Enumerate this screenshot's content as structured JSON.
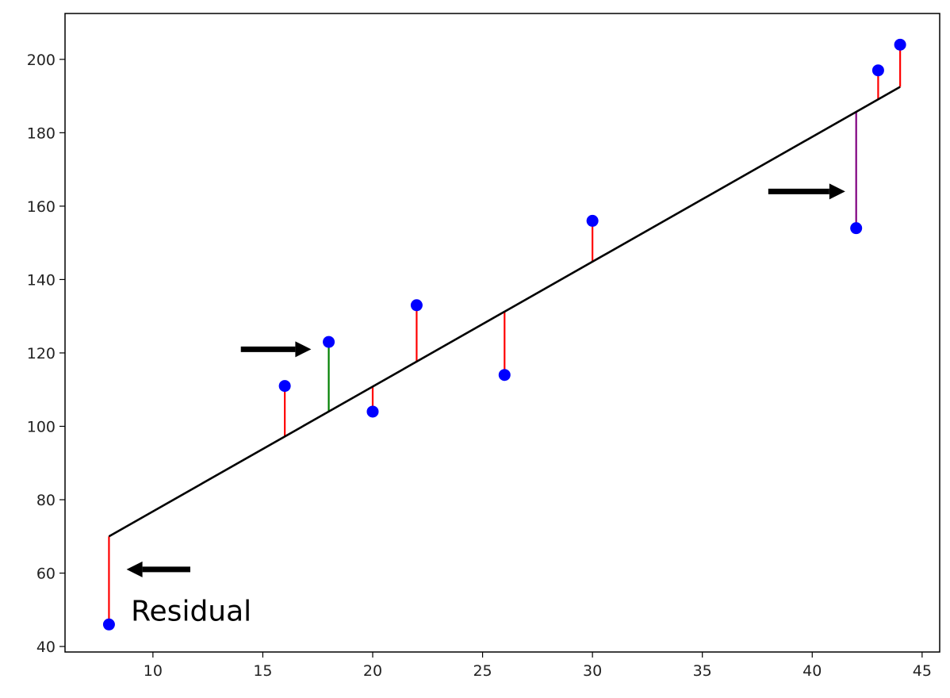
{
  "chart_data": {
    "type": "scatter",
    "title": "",
    "xlabel": "",
    "ylabel": "",
    "xlim": [
      6.0,
      45.8
    ],
    "ylim": [
      38.5,
      212.5
    ],
    "x_ticks": [
      10,
      15,
      20,
      25,
      30,
      35,
      40,
      45
    ],
    "y_ticks": [
      40,
      60,
      80,
      100,
      120,
      140,
      160,
      180,
      200
    ],
    "grid": false,
    "legend": "none",
    "regression_line": {
      "x": [
        8,
        44
      ],
      "y": [
        70,
        192.5
      ],
      "color": "#000000"
    },
    "points": [
      {
        "x": 8,
        "y": 46,
        "fitted": 70,
        "residual_color": "#ff0000"
      },
      {
        "x": 16,
        "y": 111,
        "fitted": 97.2,
        "residual_color": "#ff0000"
      },
      {
        "x": 18,
        "y": 123,
        "fitted": 104,
        "residual_color": "#008000"
      },
      {
        "x": 20,
        "y": 104,
        "fitted": 110.8,
        "residual_color": "#ff0000"
      },
      {
        "x": 22,
        "y": 133,
        "fitted": 117.6,
        "residual_color": "#ff0000"
      },
      {
        "x": 26,
        "y": 114,
        "fitted": 131.2,
        "residual_color": "#ff0000"
      },
      {
        "x": 30,
        "y": 156,
        "fitted": 144.9,
        "residual_color": "#ff0000"
      },
      {
        "x": 42,
        "y": 154,
        "fitted": 185.7,
        "residual_color": "#800080"
      },
      {
        "x": 43,
        "y": 197,
        "fitted": 189.1,
        "residual_color": "#ff0000"
      },
      {
        "x": 44,
        "y": 204,
        "fitted": 192.5,
        "residual_color": "#ff0000"
      }
    ],
    "point_color": "#0000ff",
    "annotations": [
      {
        "text": "Residual",
        "x": 9.0,
        "y": 47
      }
    ],
    "arrows": [
      {
        "from": [
          14,
          121
        ],
        "to": [
          17.2,
          121
        ],
        "color": "#000000"
      },
      {
        "from": [
          11.7,
          61
        ],
        "to": [
          8.8,
          61
        ],
        "color": "#000000"
      },
      {
        "from": [
          38,
          164
        ],
        "to": [
          41.5,
          164
        ],
        "color": "#000000"
      }
    ]
  }
}
